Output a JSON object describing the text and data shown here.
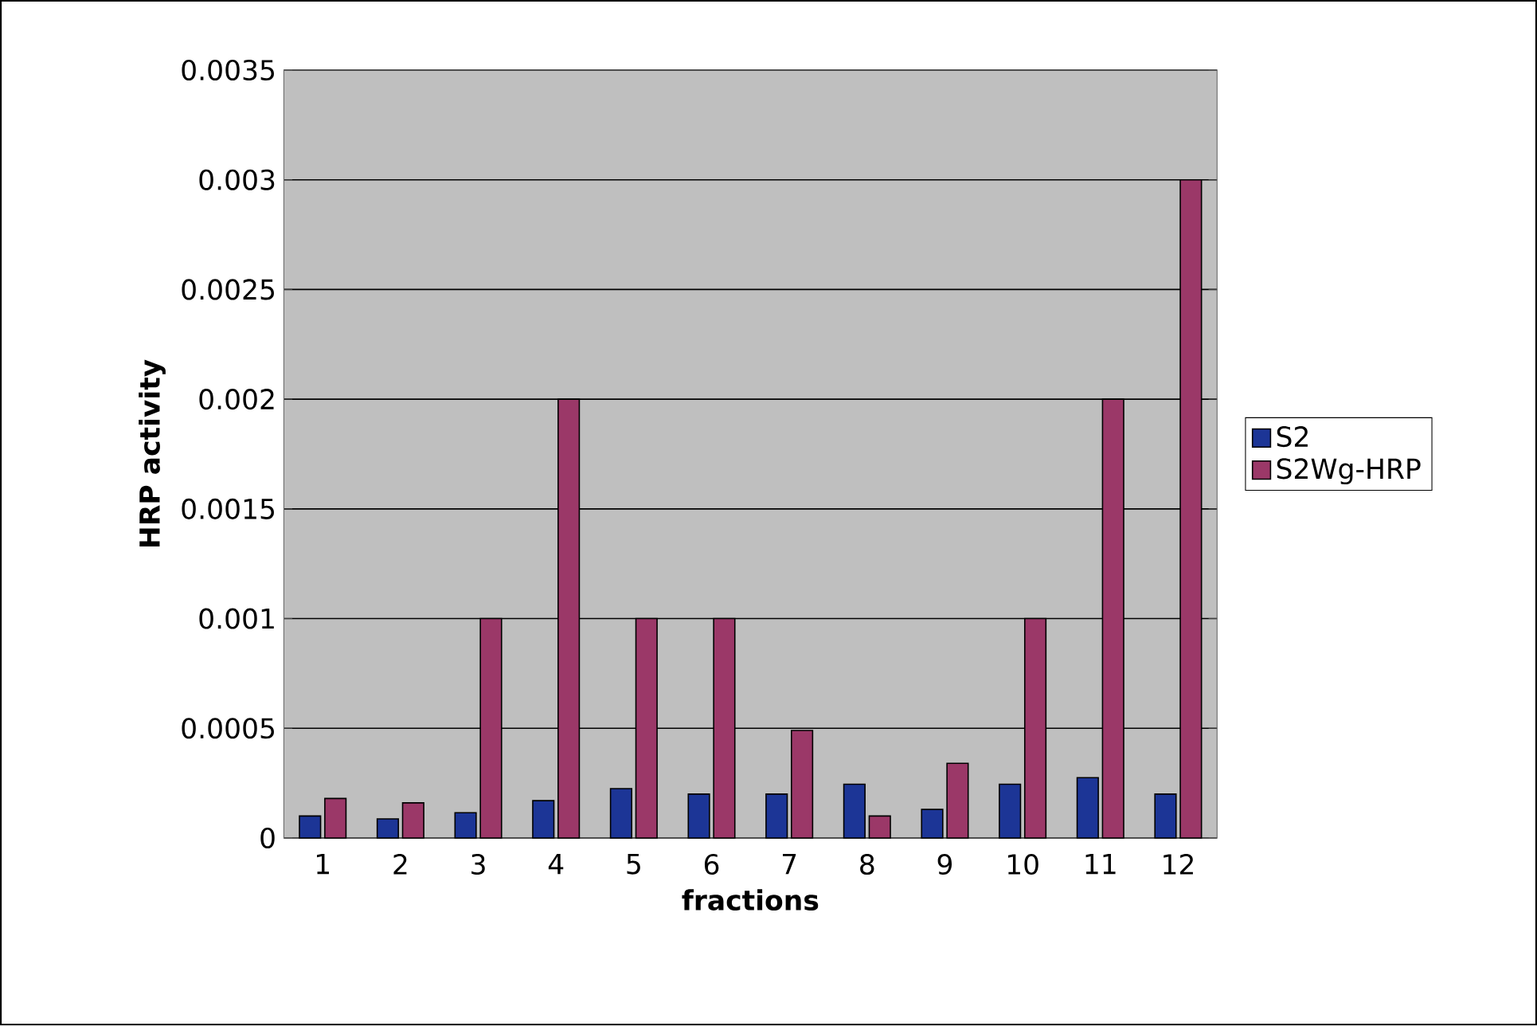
{
  "chart_data": {
    "type": "bar",
    "xlabel": "fractions",
    "ylabel": "HRP activity",
    "categories": [
      "1",
      "2",
      "3",
      "4",
      "5",
      "6",
      "7",
      "8",
      "9",
      "10",
      "11",
      "12"
    ],
    "series": [
      {
        "name": "S2",
        "color": "#1c3596",
        "values": [
          0.0001,
          8.7e-05,
          0.000115,
          0.00017,
          0.000225,
          0.0002,
          0.0002,
          0.000245,
          0.00013,
          0.000245,
          0.000275,
          0.0002
        ]
      },
      {
        "name": "S2Wg-HRP",
        "color": "#9b3868",
        "values": [
          0.00018,
          0.00016,
          0.001,
          0.002,
          0.001,
          0.001,
          0.00049,
          0.0001,
          0.00034,
          0.001,
          0.002,
          0.003
        ]
      }
    ],
    "ylim": [
      0,
      0.0035
    ],
    "yticks": [
      0,
      0.0005,
      0.001,
      0.0015,
      0.002,
      0.0025,
      0.003,
      0.0035
    ],
    "grid": "y",
    "legend": "right"
  }
}
